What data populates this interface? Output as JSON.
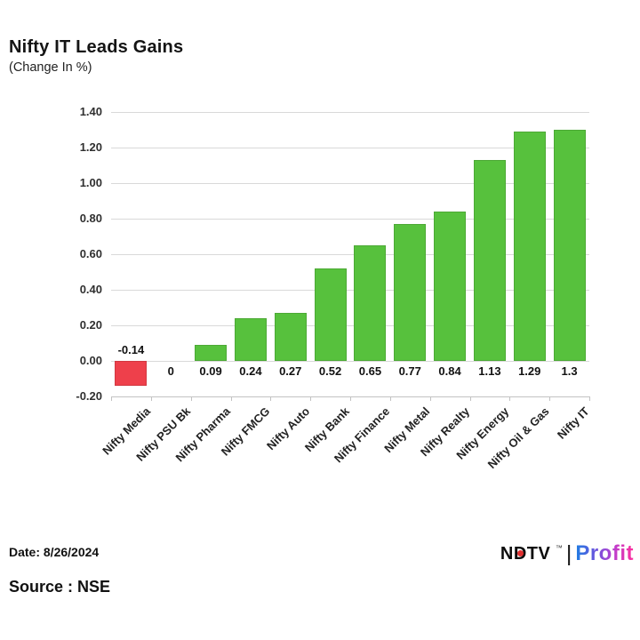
{
  "header": {
    "title": "Nifty IT Leads Gains",
    "subtitle": "(Change In %)"
  },
  "chart_data": {
    "type": "bar",
    "title": "Nifty IT Leads Gains",
    "subtitle": "(Change In %)",
    "categories": [
      "Nifty Media",
      "Nifty PSU Bk",
      "Nifty Pharma",
      "Nifty FMCG",
      "Nifty Auto",
      "Nifty Bank",
      "Nifty Finance",
      "Nifty Metal",
      "Nifty Realty",
      "Nifty Energy",
      "Nifty Oil & Gas",
      "Nifty IT"
    ],
    "values": [
      -0.14,
      0,
      0.09,
      0.24,
      0.27,
      0.52,
      0.65,
      0.77,
      0.84,
      1.13,
      1.29,
      1.3
    ],
    "value_labels": [
      "-0.14",
      "0",
      "0.09",
      "0.24",
      "0.27",
      "0.52",
      "0.65",
      "0.77",
      "0.84",
      "1.13",
      "1.29",
      "1.3"
    ],
    "xlabel": "",
    "ylabel": "",
    "ylim": [
      -0.2,
      1.4
    ],
    "yticks": [
      1.4,
      1.2,
      1.0,
      0.8,
      0.6,
      0.4,
      0.2,
      0.0,
      -0.2
    ],
    "ytick_labels": [
      "1.40",
      "1.20",
      "1.00",
      "0.80",
      "0.60",
      "0.40",
      "0.20",
      "0.00",
      "-0.20"
    ],
    "grid": true,
    "legend": false,
    "bar_color_positive": "#57c13d",
    "bar_color_negative": "#ee404b",
    "gridline_color": "#d9d9d9"
  },
  "footer": {
    "date": "Date: 8/26/2024",
    "source": "Source : NSE"
  },
  "logo": {
    "ndtv": "NDTV",
    "tm": "™",
    "separator": "|",
    "profit": "Profit",
    "profit_gradient": [
      "#1d7fe3",
      "#6a54dd",
      "#b93fd0",
      "#ff2f9d"
    ],
    "dot_color": "#e02e2e"
  }
}
